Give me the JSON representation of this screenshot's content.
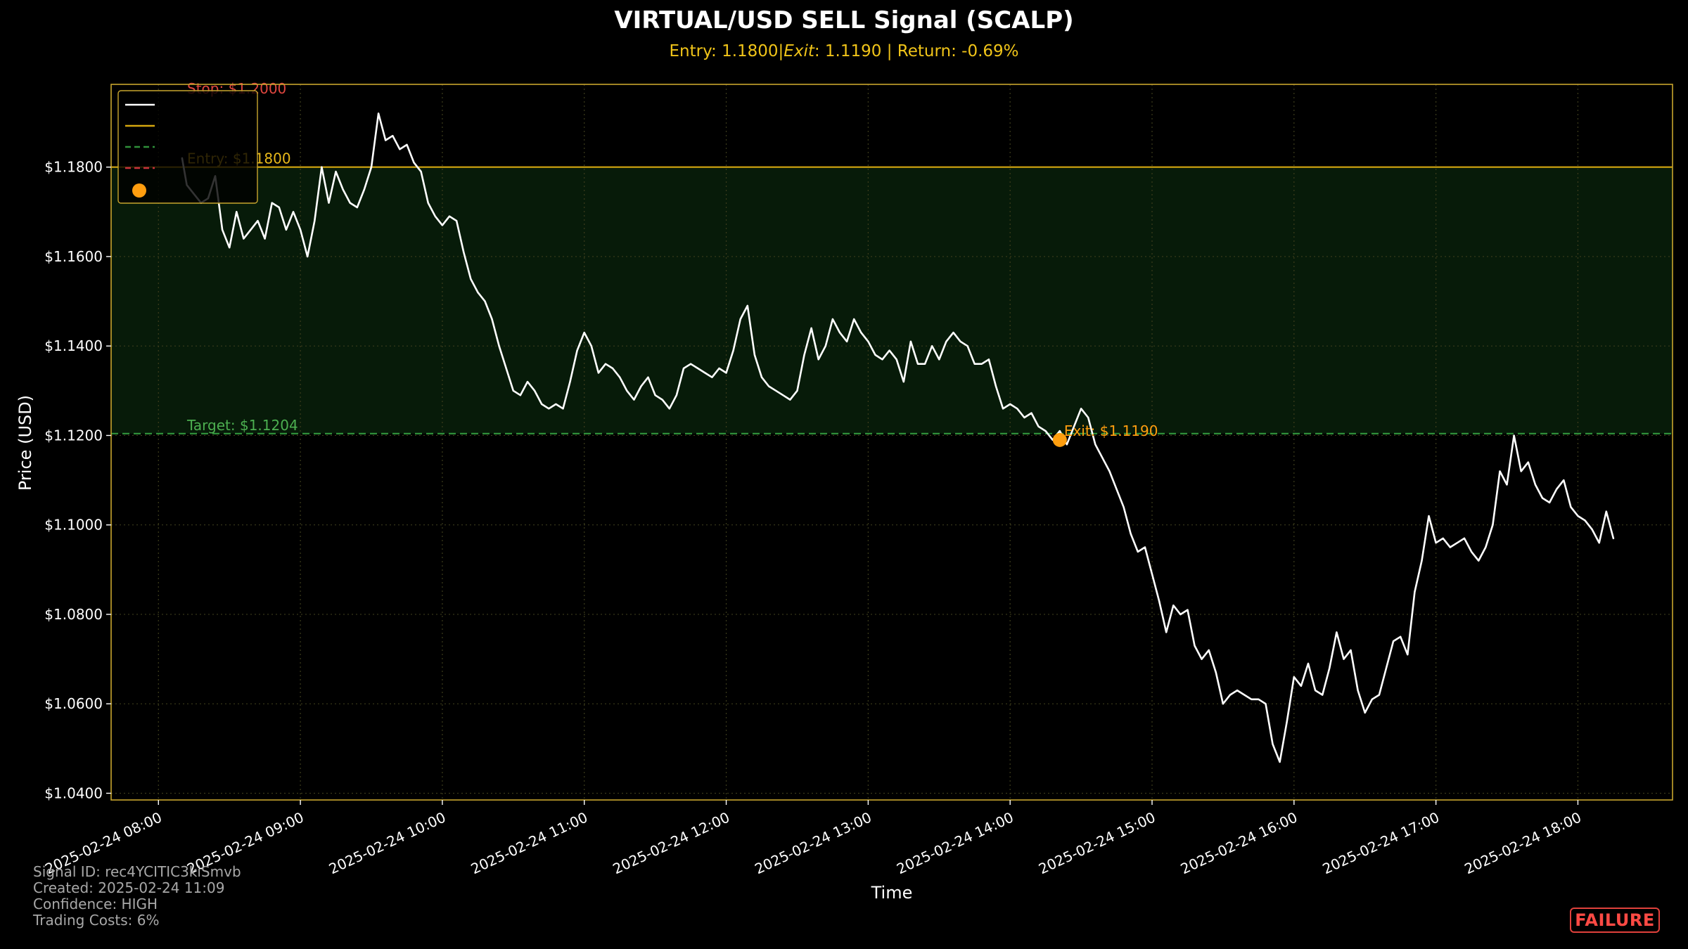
{
  "chart_data": {
    "type": "line",
    "title": "VIRTUAL/USD SELL Signal (SCALP)",
    "subtitle": "Entry: 1.1800|$Exit$: 1.1190 | Return: -0.69%",
    "subtitle_parts": {
      "before": "Entry: 1.1800|",
      "italic": "Exit",
      "after": ": 1.1190 | Return: -0.69%"
    },
    "xlabel": "Time",
    "ylabel": "Price (USD)",
    "x_range": [
      "2025-02-24 07:40",
      "2025-02-24 18:40"
    ],
    "ylim": [
      1.0385,
      1.1985
    ],
    "y_ticks": [
      {
        "value": 1.04,
        "label": "$1.0400"
      },
      {
        "value": 1.06,
        "label": "$1.0600"
      },
      {
        "value": 1.08,
        "label": "$1.0800"
      },
      {
        "value": 1.1,
        "label": "$1.1000"
      },
      {
        "value": 1.12,
        "label": "$1.1200"
      },
      {
        "value": 1.14,
        "label": "$1.1400"
      },
      {
        "value": 1.16,
        "label": "$1.1600"
      },
      {
        "value": 1.18,
        "label": "$1.1800"
      }
    ],
    "x_ticks": [
      {
        "hour": 8,
        "label": "2025-02-24 08:00"
      },
      {
        "hour": 9,
        "label": "2025-02-24 09:00"
      },
      {
        "hour": 10,
        "label": "2025-02-24 10:00"
      },
      {
        "hour": 11,
        "label": "2025-02-24 11:00"
      },
      {
        "hour": 12,
        "label": "2025-02-24 12:00"
      },
      {
        "hour": 13,
        "label": "2025-02-24 13:00"
      },
      {
        "hour": 14,
        "label": "2025-02-24 14:00"
      },
      {
        "hour": 15,
        "label": "2025-02-24 15:00"
      },
      {
        "hour": 16,
        "label": "2025-02-24 16:00"
      },
      {
        "hour": 17,
        "label": "2025-02-24 17:00"
      },
      {
        "hour": 18,
        "label": "2025-02-24 18:00"
      }
    ],
    "grid": true,
    "legend_placement": "top-left",
    "series": [
      {
        "kind": "price",
        "color": "#ffffff",
        "points": [
          [
            "08:10",
            1.182
          ],
          [
            "08:12",
            1.176
          ],
          [
            "08:15",
            1.174
          ],
          [
            "08:18",
            1.172
          ],
          [
            "08:21",
            1.173
          ],
          [
            "08:24",
            1.178
          ],
          [
            "08:27",
            1.166
          ],
          [
            "08:30",
            1.162
          ],
          [
            "08:33",
            1.17
          ],
          [
            "08:36",
            1.164
          ],
          [
            "08:39",
            1.166
          ],
          [
            "08:42",
            1.168
          ],
          [
            "08:45",
            1.164
          ],
          [
            "08:48",
            1.172
          ],
          [
            "08:51",
            1.171
          ],
          [
            "08:54",
            1.166
          ],
          [
            "08:57",
            1.17
          ],
          [
            "09:00",
            1.166
          ],
          [
            "09:03",
            1.16
          ],
          [
            "09:06",
            1.168
          ],
          [
            "09:09",
            1.18
          ],
          [
            "09:12",
            1.172
          ],
          [
            "09:15",
            1.179
          ],
          [
            "09:18",
            1.175
          ],
          [
            "09:21",
            1.172
          ],
          [
            "09:24",
            1.171
          ],
          [
            "09:27",
            1.175
          ],
          [
            "09:30",
            1.18
          ],
          [
            "09:33",
            1.192
          ],
          [
            "09:36",
            1.186
          ],
          [
            "09:39",
            1.187
          ],
          [
            "09:42",
            1.184
          ],
          [
            "09:45",
            1.185
          ],
          [
            "09:48",
            1.181
          ],
          [
            "09:51",
            1.179
          ],
          [
            "09:54",
            1.172
          ],
          [
            "09:57",
            1.169
          ],
          [
            "10:00",
            1.167
          ],
          [
            "10:03",
            1.169
          ],
          [
            "10:06",
            1.168
          ],
          [
            "10:09",
            1.161
          ],
          [
            "10:12",
            1.155
          ],
          [
            "10:15",
            1.152
          ],
          [
            "10:18",
            1.15
          ],
          [
            "10:21",
            1.146
          ],
          [
            "10:24",
            1.14
          ],
          [
            "10:27",
            1.135
          ],
          [
            "10:30",
            1.13
          ],
          [
            "10:33",
            1.129
          ],
          [
            "10:36",
            1.132
          ],
          [
            "10:39",
            1.13
          ],
          [
            "10:42",
            1.127
          ],
          [
            "10:45",
            1.126
          ],
          [
            "10:48",
            1.127
          ],
          [
            "10:51",
            1.126
          ],
          [
            "10:54",
            1.132
          ],
          [
            "10:57",
            1.139
          ],
          [
            "11:00",
            1.143
          ],
          [
            "11:03",
            1.14
          ],
          [
            "11:06",
            1.134
          ],
          [
            "11:09",
            1.136
          ],
          [
            "11:12",
            1.135
          ],
          [
            "11:15",
            1.133
          ],
          [
            "11:18",
            1.13
          ],
          [
            "11:21",
            1.128
          ],
          [
            "11:24",
            1.131
          ],
          [
            "11:27",
            1.133
          ],
          [
            "11:30",
            1.129
          ],
          [
            "11:33",
            1.128
          ],
          [
            "11:36",
            1.126
          ],
          [
            "11:39",
            1.129
          ],
          [
            "11:42",
            1.135
          ],
          [
            "11:45",
            1.136
          ],
          [
            "11:48",
            1.135
          ],
          [
            "11:51",
            1.134
          ],
          [
            "11:54",
            1.133
          ],
          [
            "11:57",
            1.135
          ],
          [
            "12:00",
            1.134
          ],
          [
            "12:03",
            1.139
          ],
          [
            "12:06",
            1.146
          ],
          [
            "12:09",
            1.149
          ],
          [
            "12:12",
            1.138
          ],
          [
            "12:15",
            1.133
          ],
          [
            "12:18",
            1.131
          ],
          [
            "12:21",
            1.13
          ],
          [
            "12:24",
            1.129
          ],
          [
            "12:27",
            1.128
          ],
          [
            "12:30",
            1.13
          ],
          [
            "12:33",
            1.138
          ],
          [
            "12:36",
            1.144
          ],
          [
            "12:39",
            1.137
          ],
          [
            "12:42",
            1.14
          ],
          [
            "12:45",
            1.146
          ],
          [
            "12:48",
            1.143
          ],
          [
            "12:51",
            1.141
          ],
          [
            "12:54",
            1.146
          ],
          [
            "12:57",
            1.143
          ],
          [
            "13:00",
            1.141
          ],
          [
            "13:03",
            1.138
          ],
          [
            "13:06",
            1.137
          ],
          [
            "13:09",
            1.139
          ],
          [
            "13:12",
            1.137
          ],
          [
            "13:15",
            1.132
          ],
          [
            "13:18",
            1.141
          ],
          [
            "13:21",
            1.136
          ],
          [
            "13:24",
            1.136
          ],
          [
            "13:27",
            1.14
          ],
          [
            "13:30",
            1.137
          ],
          [
            "13:33",
            1.141
          ],
          [
            "13:36",
            1.143
          ],
          [
            "13:39",
            1.141
          ],
          [
            "13:42",
            1.14
          ],
          [
            "13:45",
            1.136
          ],
          [
            "13:48",
            1.136
          ],
          [
            "13:51",
            1.137
          ],
          [
            "13:54",
            1.131
          ],
          [
            "13:57",
            1.126
          ],
          [
            "14:00",
            1.127
          ],
          [
            "14:03",
            1.126
          ],
          [
            "14:06",
            1.124
          ],
          [
            "14:09",
            1.125
          ],
          [
            "14:12",
            1.122
          ],
          [
            "14:15",
            1.121
          ],
          [
            "14:18",
            1.119
          ],
          [
            "14:21",
            1.121
          ],
          [
            "14:24",
            1.118
          ],
          [
            "14:27",
            1.122
          ],
          [
            "14:30",
            1.126
          ],
          [
            "14:33",
            1.124
          ],
          [
            "14:36",
            1.118
          ],
          [
            "14:39",
            1.115
          ],
          [
            "14:42",
            1.112
          ],
          [
            "14:45",
            1.108
          ],
          [
            "14:48",
            1.104
          ],
          [
            "14:51",
            1.098
          ],
          [
            "14:54",
            1.094
          ],
          [
            "14:57",
            1.095
          ],
          [
            "15:00",
            1.089
          ],
          [
            "15:03",
            1.083
          ],
          [
            "15:06",
            1.076
          ],
          [
            "15:09",
            1.082
          ],
          [
            "15:12",
            1.08
          ],
          [
            "15:15",
            1.081
          ],
          [
            "15:18",
            1.073
          ],
          [
            "15:21",
            1.07
          ],
          [
            "15:24",
            1.072
          ],
          [
            "15:27",
            1.067
          ],
          [
            "15:30",
            1.06
          ],
          [
            "15:33",
            1.062
          ],
          [
            "15:36",
            1.063
          ],
          [
            "15:39",
            1.062
          ],
          [
            "15:42",
            1.061
          ],
          [
            "15:45",
            1.061
          ],
          [
            "15:48",
            1.06
          ],
          [
            "15:51",
            1.051
          ],
          [
            "15:54",
            1.047
          ],
          [
            "15:57",
            1.056
          ],
          [
            "16:00",
            1.066
          ],
          [
            "16:03",
            1.064
          ],
          [
            "16:06",
            1.069
          ],
          [
            "16:09",
            1.063
          ],
          [
            "16:12",
            1.062
          ],
          [
            "16:15",
            1.068
          ],
          [
            "16:18",
            1.076
          ],
          [
            "16:21",
            1.07
          ],
          [
            "16:24",
            1.072
          ],
          [
            "16:27",
            1.063
          ],
          [
            "16:30",
            1.058
          ],
          [
            "16:33",
            1.061
          ],
          [
            "16:36",
            1.062
          ],
          [
            "16:39",
            1.068
          ],
          [
            "16:42",
            1.074
          ],
          [
            "16:45",
            1.075
          ],
          [
            "16:48",
            1.071
          ],
          [
            "16:51",
            1.085
          ],
          [
            "16:54",
            1.092
          ],
          [
            "16:57",
            1.102
          ],
          [
            "17:00",
            1.096
          ],
          [
            "17:03",
            1.097
          ],
          [
            "17:06",
            1.095
          ],
          [
            "17:09",
            1.096
          ],
          [
            "17:12",
            1.097
          ],
          [
            "17:15",
            1.094
          ],
          [
            "17:18",
            1.092
          ],
          [
            "17:21",
            1.095
          ],
          [
            "17:24",
            1.1
          ],
          [
            "17:27",
            1.112
          ],
          [
            "17:30",
            1.109
          ],
          [
            "17:33",
            1.12
          ],
          [
            "17:36",
            1.112
          ],
          [
            "17:39",
            1.114
          ],
          [
            "17:42",
            1.109
          ],
          [
            "17:45",
            1.106
          ],
          [
            "17:48",
            1.105
          ],
          [
            "17:51",
            1.108
          ],
          [
            "17:54",
            1.11
          ],
          [
            "17:57",
            1.104
          ],
          [
            "18:00",
            1.102
          ],
          [
            "18:03",
            1.101
          ],
          [
            "18:06",
            1.099
          ],
          [
            "18:09",
            1.096
          ],
          [
            "18:12",
            1.103
          ],
          [
            "18:15",
            1.097
          ]
        ]
      },
      {
        "kind": "entry_line",
        "value": 1.18,
        "color": "#d4a60f",
        "style": "solid"
      },
      {
        "kind": "target_line",
        "value": 1.1204,
        "color": "#2f8f3a",
        "style": "dashed"
      },
      {
        "kind": "stop_line",
        "value": 1.2,
        "color": "#c8323c",
        "style": "dashed"
      },
      {
        "kind": "exit_point",
        "time": "14:21",
        "value": 1.119,
        "color": "#ff9e0f"
      }
    ],
    "profit_zone": {
      "from": 1.1204,
      "to": 1.18,
      "color": "#0b2a0e"
    },
    "annotations": [
      {
        "id": "stop",
        "text": "Stop: $1.2000",
        "color": "#e0463f"
      },
      {
        "id": "entry",
        "text": "Entry: $1.1800",
        "color": "#e8b81a"
      },
      {
        "id": "target",
        "text": "Target: $1.1204",
        "color": "#4caf50"
      },
      {
        "id": "exit",
        "text": "Exit: $1.1190",
        "color": "#ff9e0f"
      }
    ],
    "legend": [
      {
        "marker": "line",
        "color": "#ffffff",
        "style": "solid"
      },
      {
        "marker": "line",
        "color": "#d4a60f",
        "style": "solid"
      },
      {
        "marker": "line",
        "color": "#2f8f3a",
        "style": "dashed"
      },
      {
        "marker": "line",
        "color": "#c8323c",
        "style": "dashed"
      },
      {
        "marker": "dot",
        "color": "#ff9e0f"
      }
    ],
    "colors": {
      "background": "#000000",
      "axes_frame": "#c8a52e",
      "grid": "#3d3d1c",
      "title": "#ffffff",
      "subtitle": "#f0c419",
      "tick_text": "#ffffff"
    }
  },
  "footer": {
    "signal_id": "Signal ID: rec4YCITIC3kiSmvb",
    "created": "Created: 2025-02-24 11:09",
    "confidence": "Confidence: HIGH",
    "trading_costs": "Trading Costs: 6%"
  },
  "status_badge": {
    "label": "FAILURE",
    "color": "#ff4a44"
  }
}
